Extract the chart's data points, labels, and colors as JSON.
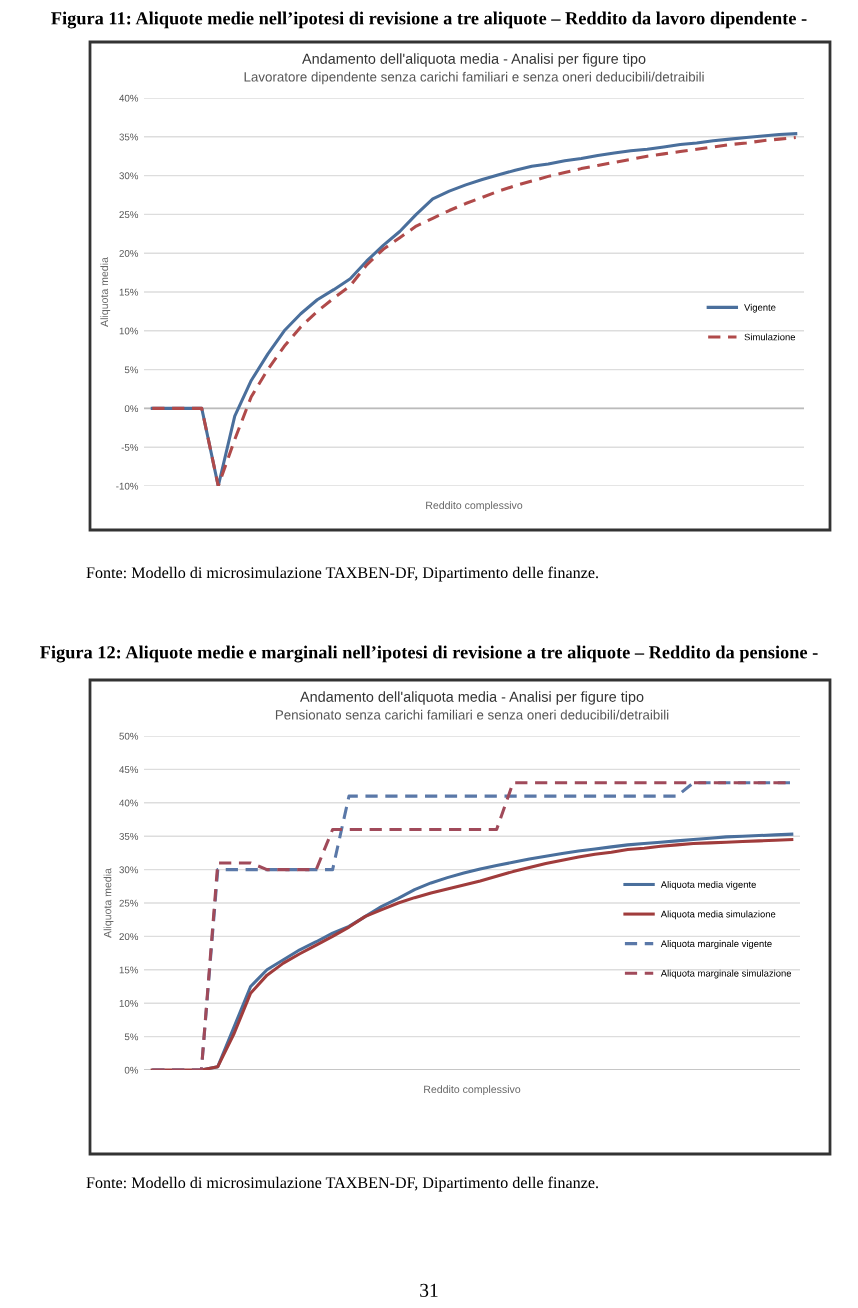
{
  "chart_data": [
    {
      "type": "line",
      "title": "Andamento dell'aliquota media - Analisi per figure tipo",
      "subtitle": "Lavoratore dipendente senza carichi familiari e senza oneri deducibili/detraibili",
      "xlabel": "Reddito complessivo",
      "ylabel": "Aliquota media",
      "annotations": [
        "Figura 11: Aliquote medie nell’ipotesi di revisione a tre aliquote – Reddito da lavoro dipendente -",
        "Fonte: Modello di microsimulazione TAXBEN-DF, Dipartimento delle finanze."
      ],
      "categories": [
        null,
        null,
        null,
        null,
        null,
        null,
        null,
        null,
        null,
        null,
        null,
        null,
        null,
        null,
        null,
        null,
        null,
        null,
        null,
        null,
        null,
        null,
        null,
        null,
        null,
        null,
        null,
        null,
        null,
        null,
        null,
        null,
        null,
        null,
        null,
        null,
        null,
        null,
        null,
        null
      ],
      "series": [
        {
          "name": "Vigente",
          "color": "#4a6f9c",
          "line_style": "solid",
          "values": [
            0,
            0,
            0,
            0,
            -10,
            -1,
            3.6,
            7,
            10,
            12.2,
            14,
            15.3,
            16.7,
            19,
            21,
            22.8,
            25,
            27,
            28,
            28.8,
            29.5,
            30.1,
            30.7,
            31.2,
            31.5,
            31.9,
            32.2,
            32.6,
            32.9,
            33.2,
            33.4,
            33.7,
            34,
            34.2,
            34.5,
            34.7,
            34.9,
            35.1,
            35.3,
            35.4
          ]
        },
        {
          "name": "Simulazione",
          "color": "#b04a4a",
          "line_style": "dashed",
          "values": [
            0,
            0,
            0,
            0,
            -10,
            -4,
            1.5,
            5,
            8,
            10.5,
            12.5,
            14.2,
            15.8,
            18.5,
            20.5,
            22,
            23.5,
            24.5,
            25.5,
            26.4,
            27.2,
            28,
            28.7,
            29.3,
            29.9,
            30.4,
            30.9,
            31.3,
            31.7,
            32.1,
            32.5,
            32.8,
            33.1,
            33.4,
            33.7,
            34,
            34.2,
            34.5,
            34.7,
            34.9
          ]
        }
      ],
      "ylim": [
        -10,
        40
      ],
      "yticks": [
        {
          "value": -10,
          "label": "-10%"
        },
        {
          "value": -5,
          "label": "-5%"
        },
        {
          "value": 0,
          "label": "0%"
        },
        {
          "value": 5,
          "label": "5%"
        },
        {
          "value": 10,
          "label": "10%"
        },
        {
          "value": 15,
          "label": "15%"
        },
        {
          "value": 20,
          "label": "20%"
        },
        {
          "value": 25,
          "label": "25%"
        },
        {
          "value": 30,
          "label": "30%"
        },
        {
          "value": 35,
          "label": "35%"
        },
        {
          "value": 40,
          "label": "40%"
        }
      ],
      "grid": "y",
      "legend": "right",
      "marker": "none"
    },
    {
      "type": "line",
      "title": "Andamento dell'aliquota media - Analisi per figure tipo",
      "subtitle": "Pensionato senza carichi familiari e senza oneri deducibili/detraibili",
      "xlabel": "Reddito complessivo",
      "ylabel": "Aliquota media",
      "annotations": [
        "Figura 12: Aliquote medie e marginali nell’ipotesi di revisione a tre aliquote – Reddito da pensione -",
        "Fonte: Modello di microsimulazione TAXBEN-DF, Dipartimento delle finanze.",
        "31"
      ],
      "categories": [
        null,
        null,
        null,
        null,
        null,
        null,
        null,
        null,
        null,
        null,
        null,
        null,
        null,
        null,
        null,
        null,
        null,
        null,
        null,
        null,
        null,
        null,
        null,
        null,
        null,
        null,
        null,
        null,
        null,
        null,
        null,
        null,
        null,
        null,
        null,
        null,
        null,
        null,
        null,
        null
      ],
      "series": [
        {
          "name": "Aliquota media vigente",
          "color": "#4a6f9c",
          "line_style": "solid",
          "values": [
            null,
            null,
            null,
            0,
            0.5,
            6.5,
            12.5,
            15,
            16.5,
            18,
            19.2,
            20.5,
            21.5,
            23,
            24.5,
            25.7,
            27,
            28,
            28.8,
            29.5,
            30.1,
            30.6,
            31.1,
            31.6,
            32,
            32.4,
            32.8,
            33.1,
            33.4,
            33.7,
            33.9,
            34.1,
            34.3,
            34.5,
            34.7,
            34.9,
            35,
            35.1,
            35.2,
            35.3
          ]
        },
        {
          "name": "Aliquota media simulazione",
          "color": "#a03c3c",
          "line_style": "solid",
          "values": [
            0,
            0,
            0,
            0,
            0.5,
            5.5,
            11.5,
            14.2,
            16,
            17.4,
            18.7,
            20,
            21.4,
            23,
            24,
            25,
            25.8,
            26.5,
            27.1,
            27.7,
            28.3,
            29,
            29.7,
            30.3,
            30.9,
            31.4,
            31.9,
            32.3,
            32.6,
            33,
            33.2,
            33.5,
            33.7,
            33.9,
            34,
            34.1,
            34.2,
            34.3,
            34.4,
            34.5
          ]
        },
        {
          "name": "Aliquota marginale vigente",
          "color": "#5a78a8",
          "line_style": "dashed",
          "values": [
            0,
            0,
            0,
            0,
            30,
            30,
            30,
            30,
            30,
            30,
            30,
            30,
            41,
            41,
            41,
            41,
            41,
            41,
            41,
            41,
            41,
            41,
            41,
            41,
            41,
            41,
            41,
            41,
            41,
            41,
            41,
            41,
            41,
            43,
            43,
            43,
            43,
            43,
            43,
            43
          ]
        },
        {
          "name": "Aliquota marginale simulazione",
          "color": "#a04a5a",
          "line_style": "dashed",
          "values": [
            0,
            0,
            0,
            0,
            31,
            31,
            31,
            30,
            30,
            30,
            30,
            36,
            36,
            36,
            36,
            36,
            36,
            36,
            36,
            36,
            36,
            36,
            43,
            43,
            43,
            43,
            43,
            43,
            43,
            43,
            43,
            43,
            43,
            43,
            43,
            43,
            43,
            43,
            43,
            43
          ]
        }
      ],
      "ylim": [
        0,
        50
      ],
      "yticks": [
        {
          "value": 0,
          "label": "0%"
        },
        {
          "value": 5,
          "label": "5%"
        },
        {
          "value": 10,
          "label": "10%"
        },
        {
          "value": 15,
          "label": "15%"
        },
        {
          "value": 20,
          "label": "20%"
        },
        {
          "value": 25,
          "label": "25%"
        },
        {
          "value": 30,
          "label": "30%"
        },
        {
          "value": 35,
          "label": "35%"
        },
        {
          "value": 40,
          "label": "40%"
        },
        {
          "value": 45,
          "label": "45%"
        },
        {
          "value": 50,
          "label": "50%"
        }
      ],
      "grid": "y",
      "legend": "right",
      "marker": "none"
    }
  ]
}
